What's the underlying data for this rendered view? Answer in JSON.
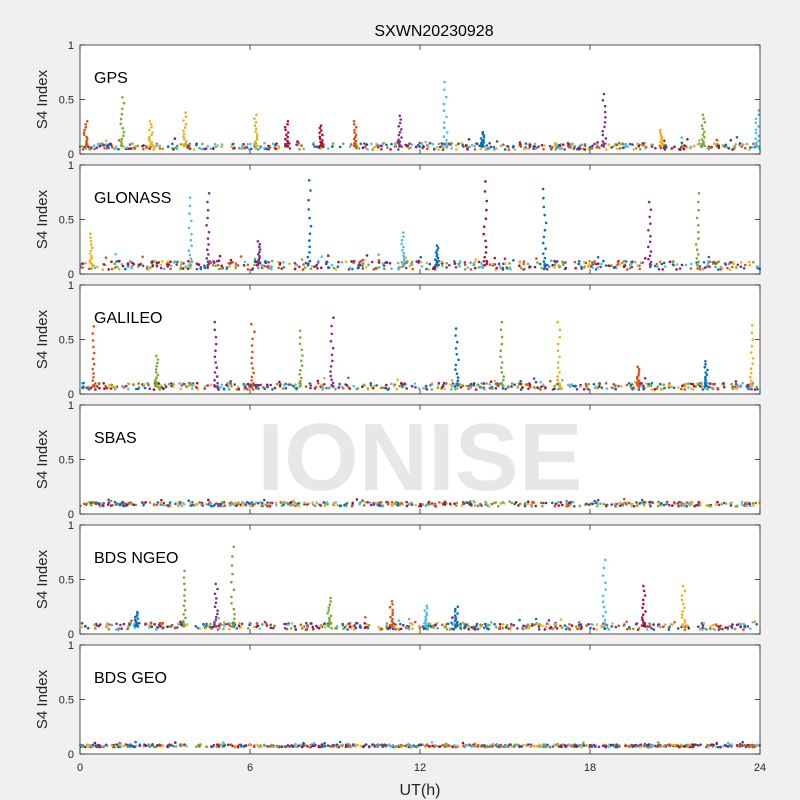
{
  "chart_data": {
    "type": "scatter",
    "title": "SXWN20230928",
    "xlabel": "UT(h)",
    "xlim": [
      0,
      24
    ],
    "xticks": [
      "0",
      "6",
      "12",
      "18",
      "24"
    ],
    "ylim": [
      0,
      1
    ],
    "watermark": "IONISE",
    "series_colors": [
      "#0072BD",
      "#D95319",
      "#EDB120",
      "#7E2F8E",
      "#77AC30",
      "#4DBEEE",
      "#A2142F"
    ],
    "panels": [
      {
        "name": "GPS",
        "ylabel": "S4 Index",
        "yticks": [
          "0",
          "0.5",
          "1"
        ],
        "baseline": 0.07,
        "noise": 0.03,
        "spikes": [
          [
            0.2,
            0.3
          ],
          [
            1.5,
            0.52
          ],
          [
            2.5,
            0.3
          ],
          [
            3.7,
            0.38
          ],
          [
            6.2,
            0.36
          ],
          [
            7.3,
            0.3
          ],
          [
            8.5,
            0.26
          ],
          [
            9.7,
            0.3
          ],
          [
            11.3,
            0.35
          ],
          [
            12.9,
            0.66
          ],
          [
            14.2,
            0.2
          ],
          [
            18.5,
            0.55
          ],
          [
            20.5,
            0.22
          ],
          [
            22.0,
            0.36
          ],
          [
            23.9,
            0.4
          ]
        ]
      },
      {
        "name": "GLONASS",
        "ylabel": "S4 Index",
        "yticks": [
          "0",
          "0.5",
          "1"
        ],
        "baseline": 0.08,
        "noise": 0.04,
        "spikes": [
          [
            0.4,
            0.37
          ],
          [
            3.9,
            0.7
          ],
          [
            4.5,
            0.74
          ],
          [
            6.3,
            0.3
          ],
          [
            8.1,
            0.86
          ],
          [
            11.4,
            0.38
          ],
          [
            12.6,
            0.26
          ],
          [
            14.3,
            0.85
          ],
          [
            16.4,
            0.78
          ],
          [
            20.1,
            0.66
          ],
          [
            21.8,
            0.74
          ]
        ]
      },
      {
        "name": "GALILEO",
        "ylabel": "S4 Index",
        "yticks": [
          "0",
          "0.5",
          "1"
        ],
        "baseline": 0.07,
        "noise": 0.03,
        "spikes": [
          [
            0.5,
            0.62
          ],
          [
            2.7,
            0.35
          ],
          [
            4.8,
            0.66
          ],
          [
            6.1,
            0.64
          ],
          [
            7.8,
            0.58
          ],
          [
            8.9,
            0.7
          ],
          [
            13.3,
            0.6
          ],
          [
            14.9,
            0.66
          ],
          [
            16.9,
            0.66
          ],
          [
            19.7,
            0.25
          ],
          [
            22.1,
            0.3
          ],
          [
            23.7,
            0.63
          ]
        ]
      },
      {
        "name": "SBAS",
        "ylabel": "S4 Index",
        "yticks": [
          "0",
          "0.5",
          "1"
        ],
        "baseline": 0.09,
        "noise": 0.02,
        "spikes": []
      },
      {
        "name": "BDS NGEO",
        "ylabel": "S4 Index",
        "yticks": [
          "0",
          "0.5",
          "1"
        ],
        "baseline": 0.07,
        "noise": 0.03,
        "spikes": [
          [
            2.0,
            0.2
          ],
          [
            3.7,
            0.58
          ],
          [
            4.8,
            0.46
          ],
          [
            5.4,
            0.8
          ],
          [
            8.8,
            0.33
          ],
          [
            11.0,
            0.3
          ],
          [
            12.2,
            0.26
          ],
          [
            13.3,
            0.25
          ],
          [
            18.5,
            0.68
          ],
          [
            19.9,
            0.44
          ],
          [
            21.3,
            0.44
          ]
        ]
      },
      {
        "name": "BDS GEO",
        "ylabel": "S4 Index",
        "yticks": [
          "0",
          "0.5",
          "1"
        ],
        "baseline": 0.075,
        "noise": 0.012,
        "spikes": []
      }
    ]
  }
}
